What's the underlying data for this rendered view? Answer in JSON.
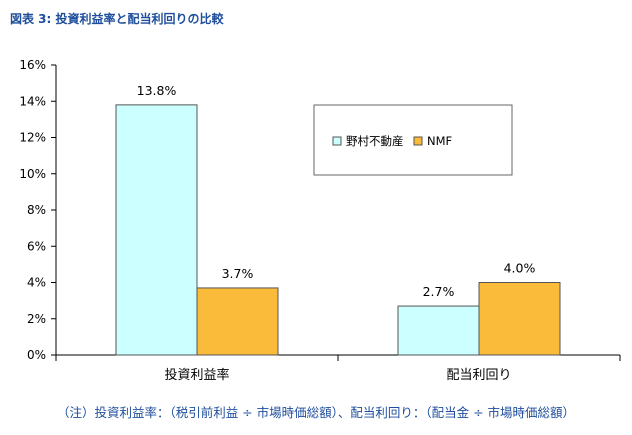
{
  "figure": {
    "title": "図表 3: 投資利益率と配当利回りの比較",
    "note": "（注）投資利益率：（税引前利益 ÷ 市場時価総額）、配当利回り：（配当金 ÷ 市場時価総額）"
  },
  "chart_data": {
    "type": "bar",
    "categories": [
      "投資利益率",
      "配当利回り"
    ],
    "series": [
      {
        "name": "野村不動産",
        "values": [
          13.8,
          2.7
        ],
        "labels": [
          "13.8%",
          "2.7%"
        ],
        "color": "#ccffff"
      },
      {
        "name": "NMF",
        "values": [
          3.7,
          4.0
        ],
        "labels": [
          "3.7%",
          "4.0%"
        ],
        "color": "#fbbb3a"
      }
    ],
    "ylim": [
      0,
      16
    ],
    "yticks": [
      "0%",
      "2%",
      "4%",
      "6%",
      "8%",
      "10%",
      "12%",
      "14%",
      "16%"
    ],
    "grid": false,
    "legend": "top-right-inside"
  }
}
